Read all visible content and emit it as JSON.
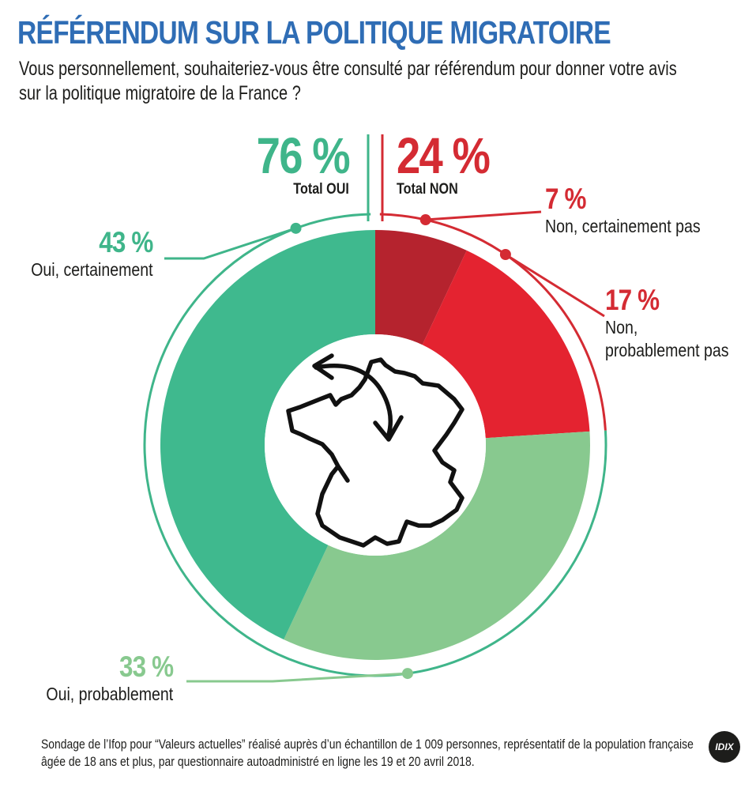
{
  "title": "RÉFÉRENDUM SUR LA POLITIQUE MIGRATOIRE",
  "subtitle": "Vous personnellement, souhaiteriez-vous être consulté par référendum pour donner votre avis sur la politique migratoire de la France ?",
  "totals": {
    "oui": {
      "pct": "76 %",
      "label": "Total OUI"
    },
    "non": {
      "pct": "24 %",
      "label": "Total NON"
    }
  },
  "chart_data": {
    "type": "pie",
    "subtype": "donut",
    "title": "RÉFÉRENDUM SUR LA POLITIQUE MIGRATOIRE",
    "categories": [
      "Non, certainement pas",
      "Non, probablement pas",
      "Oui, probablement",
      "Oui, certainement"
    ],
    "values": [
      7,
      17,
      33,
      43
    ],
    "value_labels": [
      "7 %",
      "17 %",
      "33 %",
      "43 %"
    ],
    "colors": [
      "#b5232e",
      "#e42330",
      "#88c98f",
      "#3fb98e"
    ],
    "label_colors": [
      "#d42b33",
      "#d42b33",
      "#88c98f",
      "#3fb58a"
    ],
    "totals": [
      {
        "label": "Total OUI",
        "value": 76,
        "color": "#3fb58a"
      },
      {
        "label": "Total NON",
        "value": 24,
        "color": "#d42b33"
      }
    ]
  },
  "footer": "Sondage de l’Ifop pour “Valeurs actuelles” réalisé auprès d’un échantillon de 1 009 personnes, représentatif de la population française âgée de 18 ans et plus, par questionnaire autoadministré en ligne les 19 et 20 avril 2018.",
  "logo_text": "IDIX",
  "icons": {
    "center": "france-map-with-arrow-icon"
  }
}
